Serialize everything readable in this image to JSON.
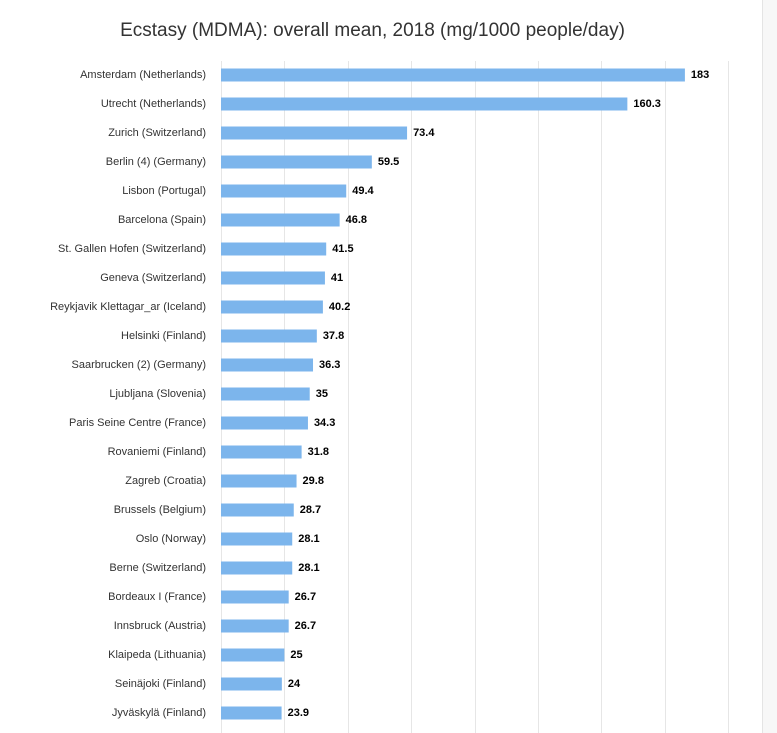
{
  "chart_data": {
    "type": "bar",
    "orientation": "horizontal",
    "title": "Ecstasy (MDMA): overall mean, 2018 (mg/1000 people/day)",
    "xlabel": "",
    "ylabel": "",
    "xlim": [
      0,
      200
    ],
    "grid": true,
    "legend": "none",
    "bar_color": "#7cb5ec",
    "categories": [
      "Amsterdam (Netherlands)",
      "Utrecht (Netherlands)",
      "Zurich (Switzerland)",
      "Berlin (4) (Germany)",
      "Lisbon (Portugal)",
      "Barcelona (Spain)",
      "St. Gallen Hofen (Switzerland)",
      "Geneva (Switzerland)",
      "Reykjavik Klettagar_ar (Iceland)",
      "Helsinki (Finland)",
      "Saarbrucken (2) (Germany)",
      "Ljubljana (Slovenia)",
      "Paris Seine Centre (France)",
      "Rovaniemi (Finland)",
      "Zagreb (Croatia)",
      "Brussels (Belgium)",
      "Oslo (Norway)",
      "Berne (Switzerland)",
      "Bordeaux I (France)",
      "Innsbruck (Austria)",
      "Klaipeda (Lithuania)",
      "Seinäjoki (Finland)",
      "Jyväskylä (Finland)"
    ],
    "values": [
      183,
      160.3,
      73.4,
      59.5,
      49.4,
      46.8,
      41.5,
      41,
      40.2,
      37.8,
      36.3,
      35,
      34.3,
      31.8,
      29.8,
      28.7,
      28.1,
      28.1,
      26.7,
      26.7,
      25,
      24,
      23.9
    ],
    "value_labels": [
      "183",
      "160.3",
      "73.4",
      "59.5",
      "49.4",
      "46.8",
      "41.5",
      "41",
      "40.2",
      "37.8",
      "36.3",
      "35",
      "34.3",
      "31.8",
      "29.8",
      "28.7",
      "28.1",
      "28.1",
      "26.7",
      "26.7",
      "25",
      "24",
      "23.9"
    ]
  }
}
